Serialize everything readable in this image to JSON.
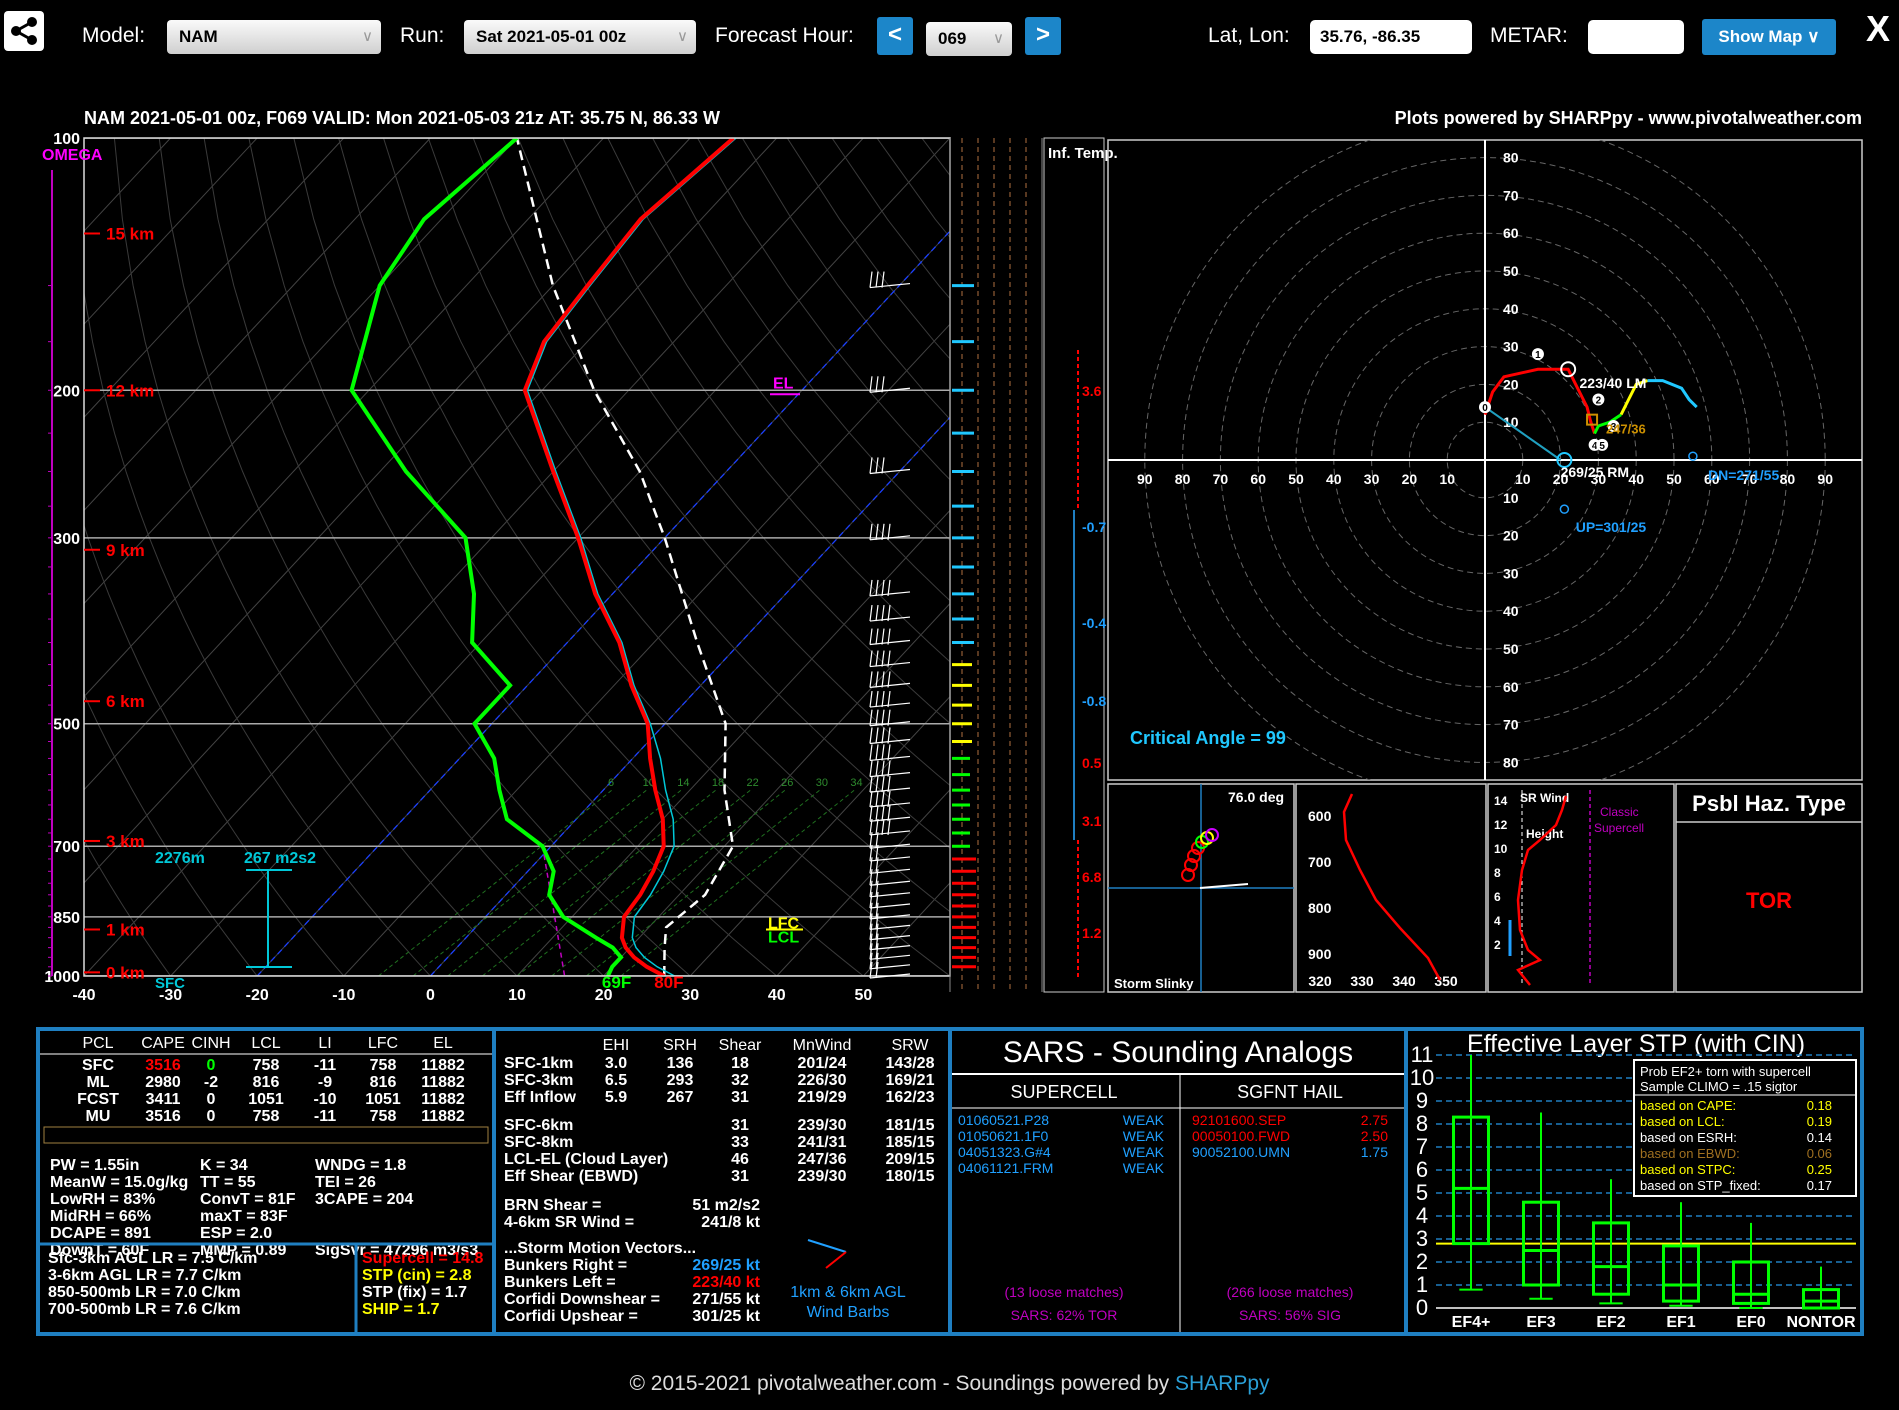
{
  "toolbar": {
    "model_label": "Model:",
    "model_value": "NAM",
    "run_label": "Run:",
    "run_value": "Sat 2021-05-01 00z",
    "fhour_label": "Forecast Hour:",
    "prev_label": "<",
    "fhour_value": "069",
    "next_label": ">",
    "latlon_label": "Lat, Lon:",
    "latlon_value": "35.76, -86.35",
    "metar_label": "METAR:",
    "metar_value": "",
    "show_map_label": "Show Map ∨",
    "close_label": "X"
  },
  "footer": {
    "text": "© 2015-2021 pivotalweather.com - Soundings powered by ",
    "link": "SHARPpy"
  },
  "colors": {
    "temp": "#ff0000",
    "dewpoint": "#00ff00",
    "virtual": "#00c8d8",
    "parcel": "#ffffff",
    "panel_border": "#1f7fc1",
    "cyan": "#20c8ff",
    "magenta": "#ff00ff",
    "yellow": "#ffff00"
  },
  "chart_data": {
    "type": "skewt",
    "header_left": "NAM 2021-05-01 00z, F069  VALID: Mon 2021-05-03 21z  AT: 35.75 N, 86.33 W",
    "header_right": "Plots powered by SHARPpy - www.pivotalweather.com",
    "omega_label": "OMEGA",
    "pressure_ticks": [
      {
        "p": 100,
        "label": "100"
      },
      {
        "p": 200,
        "label": "200"
      },
      {
        "p": 300,
        "label": "300"
      },
      {
        "p": 500,
        "label": "500"
      },
      {
        "p": 700,
        "label": "700"
      },
      {
        "p": 850,
        "label": "850"
      },
      {
        "p": 1000,
        "label": "1000"
      }
    ],
    "height_labels": [
      {
        "p": 130,
        "label": "15 km"
      },
      {
        "p": 200,
        "label": "12 km"
      },
      {
        "p": 310,
        "label": "9 km"
      },
      {
        "p": 470,
        "label": "6 km"
      },
      {
        "p": 690,
        "label": "3 km"
      },
      {
        "p": 880,
        "label": "1 km"
      },
      {
        "p": 990,
        "label": "0 km"
      }
    ],
    "temp_ticks": [
      "-40",
      "-30",
      "-20",
      "-10",
      "0",
      "10",
      "20",
      "30",
      "40",
      "50"
    ],
    "temperature": [
      [
        1000,
        27
      ],
      [
        975,
        24
      ],
      [
        950,
        21.5
      ],
      [
        925,
        19.5
      ],
      [
        900,
        18
      ],
      [
        850,
        16
      ],
      [
        800,
        15.5
      ],
      [
        750,
        14.5
      ],
      [
        700,
        13
      ],
      [
        650,
        10
      ],
      [
        600,
        6
      ],
      [
        550,
        2
      ],
      [
        500,
        -2
      ],
      [
        450,
        -8
      ],
      [
        400,
        -14
      ],
      [
        350,
        -22
      ],
      [
        300,
        -30
      ],
      [
        250,
        -40
      ],
      [
        200,
        -52
      ],
      [
        175,
        -55
      ],
      [
        150,
        -56
      ],
      [
        125,
        -57
      ],
      [
        100,
        -55
      ]
    ],
    "dewpoint": [
      [
        1000,
        20.5
      ],
      [
        975,
        20
      ],
      [
        950,
        20
      ],
      [
        925,
        18
      ],
      [
        900,
        15
      ],
      [
        850,
        9
      ],
      [
        800,
        5
      ],
      [
        750,
        3
      ],
      [
        700,
        -1
      ],
      [
        650,
        -8
      ],
      [
        600,
        -12
      ],
      [
        550,
        -16
      ],
      [
        500,
        -22
      ],
      [
        450,
        -22
      ],
      [
        400,
        -31
      ],
      [
        350,
        -36
      ],
      [
        300,
        -43
      ],
      [
        250,
        -57
      ],
      [
        200,
        -72
      ],
      [
        150,
        -80
      ],
      [
        125,
        -82
      ],
      [
        100,
        -80
      ]
    ],
    "parcel": [
      [
        1000,
        27
      ],
      [
        925,
        24
      ],
      [
        875,
        22
      ],
      [
        800,
        23
      ],
      [
        700,
        21
      ],
      [
        600,
        14
      ],
      [
        500,
        7
      ],
      [
        400,
        -5
      ],
      [
        300,
        -20
      ],
      [
        250,
        -30
      ],
      [
        200,
        -44
      ],
      [
        150,
        -60
      ],
      [
        100,
        -80
      ]
    ],
    "temp_sfc_label": "80F",
    "dew_sfc_label": "69F",
    "el_label": "EL",
    "lfc_label": "LFC",
    "lcl_label": "LCL",
    "sfc_label": "SFC",
    "eff_inflow_depth": "2276m",
    "eff_inflow_srh": "267 m2s2",
    "mixing_ratio_labels": [
      "6",
      "10",
      "14",
      "18",
      "22",
      "26",
      "30",
      "34"
    ],
    "inf_temp_label": "Inf. Temp.",
    "inf_temp_values": [
      "3.6",
      "-0.7",
      "-0.4",
      "-0.8",
      "0.5",
      "3.1",
      "6.8",
      "1.2"
    ],
    "hodograph": {
      "rings": [
        "10",
        "20",
        "30",
        "40",
        "50",
        "60",
        "70",
        "80",
        "90"
      ],
      "x_axis_labels": [
        "90",
        "80",
        "70",
        "60",
        "50",
        "40",
        "30",
        "20",
        "10",
        "10",
        "20",
        "30",
        "40",
        "50",
        "60",
        "70",
        "80",
        "90"
      ],
      "y_axis_top": [
        "80",
        "70",
        "60",
        "50",
        "40",
        "30",
        "20",
        "10"
      ],
      "y_axis_bottom": [
        "10",
        "20",
        "30",
        "40",
        "50",
        "60",
        "70",
        "80"
      ],
      "lm_label": "223/40 LM",
      "rm_label": "269/25 RM",
      "mean_label": "247/36",
      "dn_label": "DN=271/55",
      "up_label": "UP=301/25",
      "critical_angle": "Critical Angle = 99",
      "points_labels": [
        "0",
        "1",
        "2",
        "3",
        "4",
        "5",
        "6"
      ]
    },
    "slinky": {
      "title": "76.0 deg",
      "label": "Storm Slinky"
    },
    "theta": {
      "y_labels": [
        "600",
        "700",
        "800",
        "900"
      ],
      "x_labels": [
        "320",
        "330",
        "340",
        "350"
      ]
    },
    "srwind": {
      "title1": "SR Wind",
      "title2": "Height",
      "classic": "Classic Supercell",
      "y_labels": [
        "14",
        "12",
        "10",
        "8",
        "6",
        "4",
        "2"
      ]
    },
    "hazard": {
      "title": "Psbl Haz. Type",
      "value": "TOR"
    }
  },
  "thermo": {
    "headers": [
      "PCL",
      "CAPE",
      "CINH",
      "LCL",
      "LI",
      "LFC",
      "EL"
    ],
    "rows": [
      [
        "SFC",
        "3516",
        "0",
        "758",
        "-11",
        "758",
        "11882"
      ],
      [
        "ML",
        "2980",
        "-2",
        "816",
        "-9",
        "816",
        "11882"
      ],
      [
        "FCST",
        "3411",
        "0",
        "1051",
        "-10",
        "1051",
        "11882"
      ],
      [
        "MU",
        "3516",
        "0",
        "758",
        "-11",
        "758",
        "11882"
      ]
    ],
    "indices": [
      [
        "PW = 1.55in",
        "K = 34",
        "WNDG = 1.8"
      ],
      [
        "MeanW = 15.0g/kg",
        "TT = 55",
        "TEI = 26"
      ],
      [
        "LowRH = 83%",
        "ConvT = 81F",
        "3CAPE = 204"
      ],
      [
        "MidRH = 66%",
        "maxT = 83F",
        ""
      ],
      [
        "DCAPE = 891",
        "ESP = 2.0",
        ""
      ],
      [
        "DownT = 60F",
        "MMP = 0.89",
        "SigSvr = 47296 m3/s3"
      ]
    ],
    "lapse": [
      "Sfc-3km AGL LR = 7.5 C/km",
      "3-6km AGL LR = 7.7 C/km",
      "850-500mb LR = 7.0 C/km",
      "700-500mb LR = 7.6 C/km"
    ],
    "params": [
      "Supercell = 14.8",
      "STP (cin) = 2.8",
      "STP (fix) = 1.7",
      "SHIP = 1.7"
    ]
  },
  "kinematic": {
    "headers": [
      "EHI",
      "SRH",
      "Shear",
      "MnWind",
      "SRW"
    ],
    "rows": [
      [
        "SFC-1km",
        "3.0",
        "136",
        "18",
        "201/24",
        "143/28"
      ],
      [
        "SFC-3km",
        "6.5",
        "293",
        "32",
        "226/30",
        "169/21"
      ],
      [
        "Eff Inflow",
        "5.9",
        "267",
        "31",
        "219/29",
        "162/23"
      ],
      [
        "SFC-6km",
        "",
        "",
        "31",
        "239/30",
        "181/15"
      ],
      [
        "SFC-8km",
        "",
        "",
        "33",
        "241/31",
        "185/15"
      ],
      [
        "LCL-EL (Cloud Layer)",
        "",
        "",
        "46",
        "247/36",
        "209/15"
      ],
      [
        "Eff Shear (EBWD)",
        "",
        "",
        "31",
        "239/30",
        "180/15"
      ]
    ],
    "brn": [
      "BRN Shear =",
      "51 m2/s2"
    ],
    "srwind": [
      "4-6km SR Wind =",
      "241/8 kt"
    ],
    "vectors_title": "...Storm Motion Vectors...",
    "vectors": [
      [
        "Bunkers Right =",
        "269/25 kt"
      ],
      [
        "Bunkers Left =",
        "223/40 kt"
      ],
      [
        "Corfidi Downshear =",
        "271/55 kt"
      ],
      [
        "Corfidi Upshear =",
        "301/25 kt"
      ]
    ],
    "barb_label1": "1km & 6km AGL",
    "barb_label2": "Wind Barbs"
  },
  "sars": {
    "title": "SARS - Sounding Analogs",
    "supercell_title": "SUPERCELL",
    "hail_title": "SGFNT HAIL",
    "supercell": [
      [
        "01060521.P28",
        "WEAK"
      ],
      [
        "01050621.1F0",
        "WEAK"
      ],
      [
        "04051323.G#4",
        "WEAK"
      ],
      [
        "04061121.FRM",
        "WEAK"
      ]
    ],
    "hail": [
      [
        "92101600.SEP",
        "2.75"
      ],
      [
        "00050100.FWD",
        "2.50"
      ],
      [
        "90052100.UMN",
        "1.75"
      ]
    ],
    "sc_matches": "(13 loose matches)",
    "sc_pct": "SARS: 62% TOR",
    "hail_matches": "(266 loose matches)",
    "hail_pct": "SARS: 56% SIG"
  },
  "stp": {
    "title": "Effective Layer STP (with CIN)",
    "prob_title1": "Prob EF2+ torn with supercell",
    "prob_title2": "Sample CLIMO = .15 sigtor",
    "probs": [
      [
        "based on CAPE:",
        "0.18"
      ],
      [
        "based on LCL:",
        "0.19"
      ],
      [
        "based on ESRH:",
        "0.14"
      ],
      [
        "based on EBWD:",
        "0.06"
      ],
      [
        "based on STPC:",
        "0.25"
      ],
      [
        "based on STP_fixed:",
        "0.17"
      ]
    ],
    "y_labels": [
      "0",
      "1",
      "2",
      "3",
      "4",
      "5",
      "6",
      "7",
      "8",
      "9",
      "10",
      "11"
    ],
    "categories": [
      "EF4+",
      "EF3",
      "EF2",
      "EF1",
      "EF0",
      "NONTOR"
    ],
    "boxes": [
      {
        "lo": 0.8,
        "q1": 2.8,
        "med": 5.2,
        "q3": 8.3,
        "hi": 11
      },
      {
        "lo": 0.4,
        "q1": 1.0,
        "med": 2.5,
        "q3": 4.6,
        "hi": 8.5
      },
      {
        "lo": 0.2,
        "q1": 0.6,
        "med": 1.8,
        "q3": 3.7,
        "hi": 5.6
      },
      {
        "lo": 0.1,
        "q1": 0.3,
        "med": 1.0,
        "q3": 2.7,
        "hi": 4.6
      },
      {
        "lo": 0.0,
        "q1": 0.2,
        "med": 0.6,
        "q3": 2.0,
        "hi": 3.7
      },
      {
        "lo": 0.0,
        "q1": 0.0,
        "med": 0.3,
        "q3": 0.8,
        "hi": 1.8
      }
    ],
    "value": 2.8
  }
}
